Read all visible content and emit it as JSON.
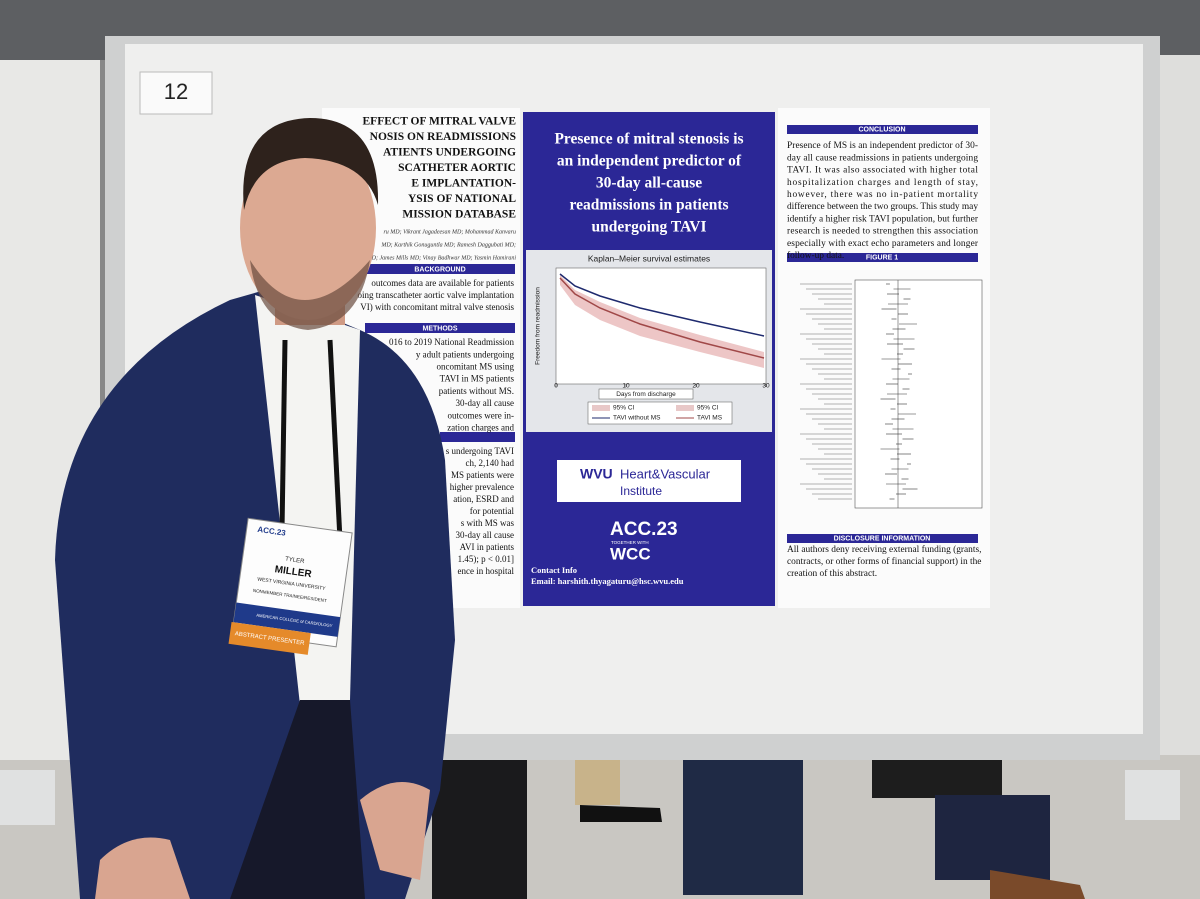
{
  "board_number": "12",
  "poster": {
    "title_lines": [
      "EFFECT OF MITRAL VALVE",
      "NOSIS ON READMISSIONS",
      "ATIENTS UNDERGOING",
      "SCATHETER AORTIC",
      "E IMPLANTATION-",
      "YSIS OF NATIONAL",
      "MISSION DATABASE"
    ],
    "authors": [
      "ru MD; Vikrant Jagadeesan MD; Mohammad Kanvaru",
      "MD; Karthik Gonuguntla MD; Ramesh Daggubati MD;",
      "D; James Mills MD; Vinay Badhwar MD; Yasmin Hamirani"
    ],
    "background": {
      "heading": "BACKGROUND",
      "lines": [
        "outcomes data are available for patients",
        "oing transcatheter aortic valve implantation",
        "VI) with concomitant mitral valve stenosis"
      ]
    },
    "methods": {
      "heading": "METHODS",
      "lines": [
        "016 to 2019 National Readmission",
        "y adult patients undergoing",
        "oncomitant MS using",
        "TAVI in MS patients",
        "patients without MS.",
        "30-day all cause",
        "outcomes were in-",
        "zation charges and"
      ]
    },
    "results": {
      "lines": [
        "s undergoing TAVI",
        "ch, 2,140 had",
        "MS patients were",
        "higher prevalence",
        "ation, ESRD and",
        "for potential",
        "s with MS was",
        "30-day all cause",
        "AVI in patients",
        "1.45); p < 0.01]",
        "ence in hospital"
      ]
    },
    "headline_lines": [
      "Presence of mitral stenosis is",
      "an independent predictor of",
      "30-day all-cause",
      "readmissions in patients",
      "undergoing TAVI"
    ],
    "km": {
      "title": "Kaplan–Meier survival estimates",
      "y_label": "Freedom from readmission",
      "x_label": "Days from discharge",
      "x_ticks": [
        0,
        10,
        20,
        30
      ],
      "legend": [
        "95% CI",
        "95% CI",
        "TAVI without MS",
        "TAVI MS"
      ]
    },
    "logo": {
      "wvu": "WVU",
      "name": "Heart&Vascular",
      "sub": "Institute"
    },
    "acc": {
      "line1": "ACC.23",
      "together": "TOGETHER WITH",
      "line2": "WCC"
    },
    "contact": {
      "heading": "Contact Info",
      "email": "Email: harshith.thyagaturu@hsc.wvu.edu"
    },
    "conclusion": {
      "heading": "CONCLUSION",
      "lines": [
        "Presence of MS is an independent predictor of 30-",
        "day all cause readmissions in patients undergoing",
        "TAVI. It was also associated with higher total",
        "hospitalization charges and length of stay,",
        "however, there was no in-patient mortality",
        "difference between the two groups. This study may",
        "identify a higher risk TAVI population, but further",
        "research is needed to strengthen this association",
        "especially with exact echo parameters and longer",
        "follow-up data."
      ]
    },
    "figure": {
      "heading": "FIGURE 1"
    },
    "disclosure": {
      "heading": "DISCLOSURE INFORMATION",
      "lines": [
        "All authors deny receiving external funding (grants,",
        "contracts, or other forms of financial support) in the",
        "creation of this abstract."
      ]
    }
  },
  "badge": {
    "event": "ACC.23",
    "name_first": "TYLER",
    "name_last": "MILLER",
    "org": "WEST VIRGINIA UNIVERSITY",
    "role": "NONMEMBER TRAINEE/RESIDENT",
    "college": "AMERICAN COLLEGE of CARDIOLOGY",
    "ribbon": "ABSTRACT PRESENTER"
  }
}
